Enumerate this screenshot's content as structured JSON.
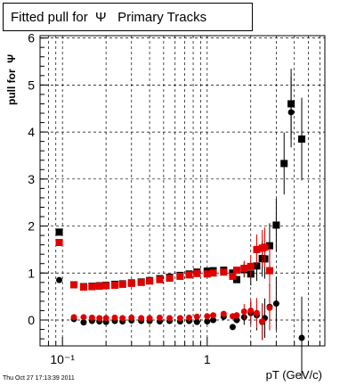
{
  "title": "Fitted pull for  Ψ   Primary Tracks",
  "footer": "Thu Oct 27 17:13:39 2011",
  "chart_data": {
    "type": "scatter",
    "title": "Fitted pull for  Ψ   Primary Tracks",
    "xlabel": "pT (GeV/c)",
    "ylabel": "pull for  Ψ",
    "x_scale": "log",
    "xlim": [
      0.07,
      6.5
    ],
    "ylim": [
      -0.55,
      6.05
    ],
    "x_tick_labels": [
      "10⁻¹",
      "1"
    ],
    "y_ticks": [
      0,
      1,
      2,
      3,
      4,
      5,
      6
    ],
    "grid": true,
    "series": [
      {
        "name": "",
        "color": "#000000",
        "marker": "square",
        "points": [
          [
            0.095,
            1.87
          ],
          [
            0.12,
            0.75
          ],
          [
            0.14,
            0.71
          ],
          [
            0.16,
            0.72
          ],
          [
            0.18,
            0.73
          ],
          [
            0.2,
            0.74
          ],
          [
            0.23,
            0.76
          ],
          [
            0.26,
            0.77
          ],
          [
            0.3,
            0.79
          ],
          [
            0.35,
            0.81
          ],
          [
            0.4,
            0.84
          ],
          [
            0.47,
            0.88
          ],
          [
            0.55,
            0.91
          ],
          [
            0.65,
            0.95
          ],
          [
            0.75,
            0.98
          ],
          [
            0.85,
            1.02
          ],
          [
            1.0,
            1.04
          ],
          [
            1.1,
            1.05
          ],
          [
            1.3,
            1.06
          ],
          [
            1.5,
            1.0
          ],
          [
            1.6,
            0.86
          ],
          [
            1.8,
            1.07
          ],
          [
            2.0,
            0.98
          ],
          [
            2.2,
            1.15
          ],
          [
            2.4,
            1.31
          ],
          [
            2.5,
            1.3
          ],
          [
            2.7,
            1.58
          ],
          [
            3.0,
            2.02
          ],
          [
            3.4,
            3.33
          ],
          [
            3.8,
            4.6
          ],
          [
            4.5,
            3.85
          ]
        ]
      },
      {
        "name": "",
        "color": "#e00000",
        "marker": "square",
        "points": [
          [
            0.095,
            1.65
          ],
          [
            0.12,
            0.75
          ],
          [
            0.14,
            0.7
          ],
          [
            0.16,
            0.71
          ],
          [
            0.18,
            0.72
          ],
          [
            0.2,
            0.73
          ],
          [
            0.23,
            0.74
          ],
          [
            0.26,
            0.76
          ],
          [
            0.3,
            0.78
          ],
          [
            0.35,
            0.8
          ],
          [
            0.4,
            0.83
          ],
          [
            0.47,
            0.86
          ],
          [
            0.55,
            0.89
          ],
          [
            0.65,
            0.93
          ],
          [
            0.75,
            0.96
          ],
          [
            0.85,
            0.99
          ],
          [
            1.0,
            0.98
          ],
          [
            1.1,
            1.0
          ],
          [
            1.3,
            1.02
          ],
          [
            1.5,
            0.93
          ],
          [
            1.6,
            1.06
          ],
          [
            1.8,
            1.1
          ],
          [
            2.0,
            1.14
          ],
          [
            2.2,
            1.5
          ],
          [
            2.4,
            1.53
          ],
          [
            2.5,
            1.55
          ],
          [
            2.7,
            1.05
          ]
        ]
      },
      {
        "name": "",
        "color": "#000000",
        "marker": "circle",
        "points": [
          [
            0.095,
            0.85
          ],
          [
            0.12,
            0.02
          ],
          [
            0.14,
            -0.05
          ],
          [
            0.16,
            -0.02
          ],
          [
            0.18,
            -0.03
          ],
          [
            0.2,
            -0.04
          ],
          [
            0.23,
            -0.02
          ],
          [
            0.26,
            -0.03
          ],
          [
            0.3,
            -0.01
          ],
          [
            0.35,
            -0.02
          ],
          [
            0.4,
            -0.02
          ],
          [
            0.47,
            -0.03
          ],
          [
            0.55,
            -0.02
          ],
          [
            0.65,
            -0.03
          ],
          [
            0.75,
            -0.02
          ],
          [
            0.85,
            -0.04
          ],
          [
            1.0,
            -0.03
          ],
          [
            1.1,
            0.0
          ],
          [
            1.3,
            0.07
          ],
          [
            1.5,
            -0.15
          ],
          [
            1.6,
            0.0
          ],
          [
            1.8,
            0.06
          ],
          [
            2.0,
            0.15
          ],
          [
            2.2,
            0.1
          ],
          [
            2.4,
            -0.04
          ],
          [
            2.5,
            0.04
          ],
          [
            2.7,
            0.28
          ],
          [
            3.0,
            0.35
          ],
          [
            3.8,
            4.42
          ],
          [
            4.5,
            -0.38
          ]
        ]
      },
      {
        "name": "",
        "color": "#e00000",
        "marker": "circle",
        "points": [
          [
            0.12,
            0.06
          ],
          [
            0.14,
            0.06
          ],
          [
            0.16,
            0.05
          ],
          [
            0.18,
            0.04
          ],
          [
            0.2,
            0.04
          ],
          [
            0.23,
            0.05
          ],
          [
            0.26,
            0.04
          ],
          [
            0.3,
            0.05
          ],
          [
            0.35,
            0.04
          ],
          [
            0.4,
            0.04
          ],
          [
            0.47,
            0.05
          ],
          [
            0.55,
            0.04
          ],
          [
            0.65,
            0.04
          ],
          [
            0.75,
            0.05
          ],
          [
            0.85,
            0.07
          ],
          [
            1.0,
            0.08
          ],
          [
            1.1,
            0.1
          ],
          [
            1.3,
            0.13
          ],
          [
            1.5,
            0.08
          ],
          [
            1.6,
            0.1
          ],
          [
            1.8,
            0.18
          ],
          [
            2.0,
            0.2
          ],
          [
            2.2,
            0.15
          ],
          [
            2.4,
            -0.03
          ],
          [
            2.7,
            0.26
          ]
        ]
      }
    ]
  }
}
